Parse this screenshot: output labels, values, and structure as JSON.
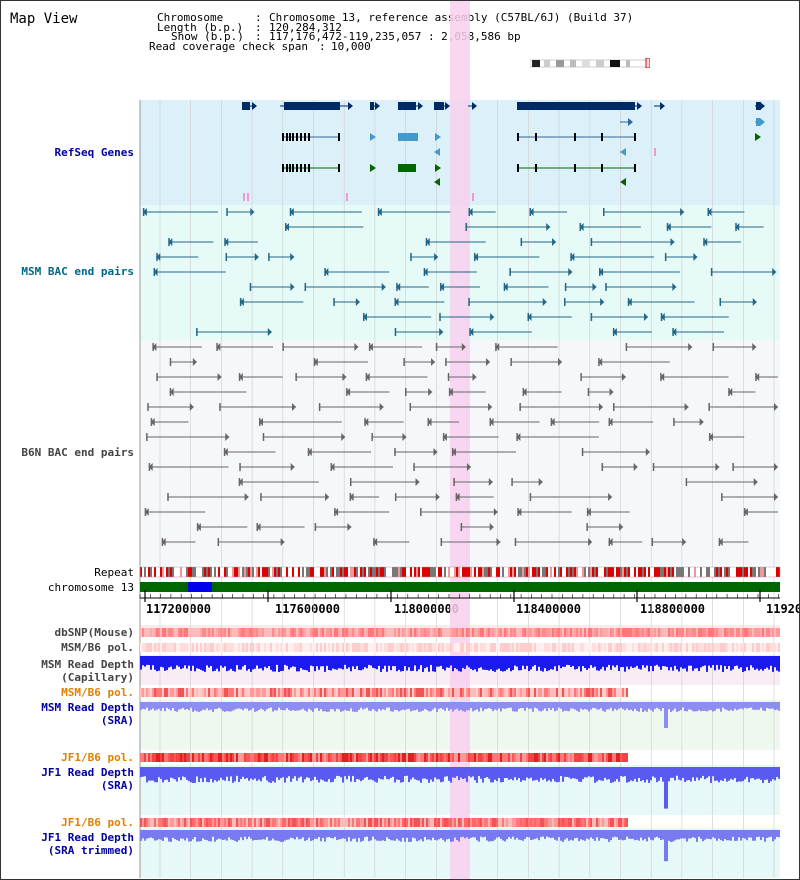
{
  "title": "Map View",
  "info": {
    "chromosome_key": "Chromosome",
    "chromosome_val": "Chromosome 13, reference assembly (C57BL/6J) (Build 37)",
    "length_key": "Length (b.p.)",
    "length_val": "120,284,312",
    "show_key": "Show (b.p.)",
    "show_val": "117,176,472-119,235,057 : 2,058,586 bp",
    "coverage_key": "Read coverage check span",
    "coverage_val": "10,000"
  },
  "tracks": {
    "refseq": "RefSeq Genes",
    "msm_bac": "MSM BAC end pairs",
    "b6n_bac": "B6N BAC end pairs",
    "repeat": "Repeat",
    "chromosome": "chromosome 13",
    "dbsnp": "dbSNP(Mouse)",
    "msm_b6_pol_1": "MSM/B6 pol.",
    "msm_depth_cap_1": "MSM Read Depth",
    "msm_depth_cap_2": "(Capillary)",
    "msm_b6_pol_2": "MSM/B6 pol.",
    "msm_depth_sra_1": "MSM Read Depth",
    "msm_depth_sra_2": "(SRA)",
    "jf1_b6_pol_1": "JF1/B6 pol.",
    "jf1_depth_sra_1": "JF1 Read Depth",
    "jf1_depth_sra_2": "(SRA)",
    "jf1_b6_pol_2": "JF1/B6 pol.",
    "jf1_depth_trim_1": "JF1 Read Depth",
    "jf1_depth_trim_2": "(SRA trimmed)"
  },
  "axis": {
    "ticks": [
      "117200000",
      "117600000",
      "118000000",
      "118400000",
      "118800000",
      "11920"
    ]
  },
  "colors": {
    "refseq_bg": "#dcf0fa",
    "bac_bg": "#e6faf8",
    "b6n_bg": "#f5f7fa",
    "highlight": "#f8d0ee",
    "gene_dark": "#002a66",
    "gene_mid": "#4499cc",
    "gene_green": "#006600",
    "chrom_green": "#006600",
    "chrom_blue": "#0000ee"
  }
}
